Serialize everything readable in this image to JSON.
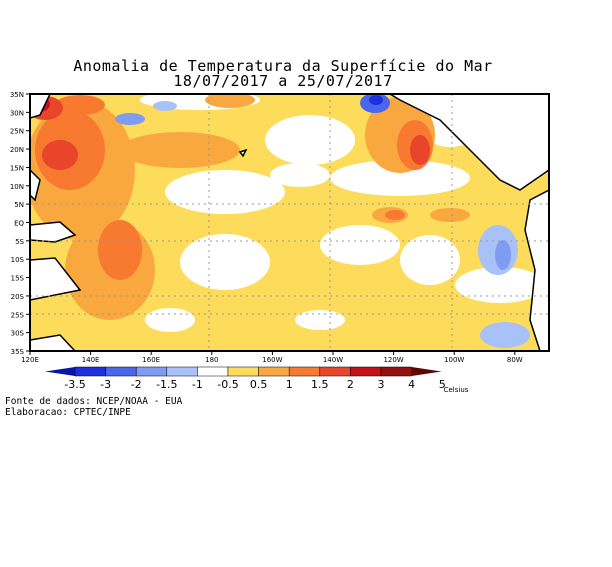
{
  "title": "Anomalia de Temperatura da Superfície do Mar",
  "subtitle": "18/07/2017 a 25/07/2017",
  "lat_labels": [
    "35N",
    "30N",
    "25N",
    "20N",
    "15N",
    "10N",
    "5N",
    "EQ",
    "5S",
    "10S",
    "15S",
    "20S",
    "25S",
    "30S",
    "35S"
  ],
  "lon_labels": [
    "120E",
    "140E",
    "160E",
    "180",
    "160W",
    "140W",
    "120W",
    "100W",
    "80W"
  ],
  "colorbar": {
    "labels": [
      "-3.5",
      "-3",
      "-2",
      "-1.5",
      "-1",
      "-0.5",
      "0.5",
      "1",
      "1.5",
      "2",
      "3",
      "4",
      "5"
    ],
    "colors": [
      "#0a14a8",
      "#1e2fe0",
      "#4a66ec",
      "#7f9cf2",
      "#a8c2f8",
      "#ffffff",
      "#fddc5c",
      "#f9a840",
      "#f77a30",
      "#e8452a",
      "#c8101a",
      "#961010",
      "#5e0606"
    ],
    "unit": "Celsius"
  },
  "credits": {
    "source": "Fonte de dados: NCEP/NOAA - EUA",
    "made_by": "Elaboracao: CPTEC/INPE"
  }
}
